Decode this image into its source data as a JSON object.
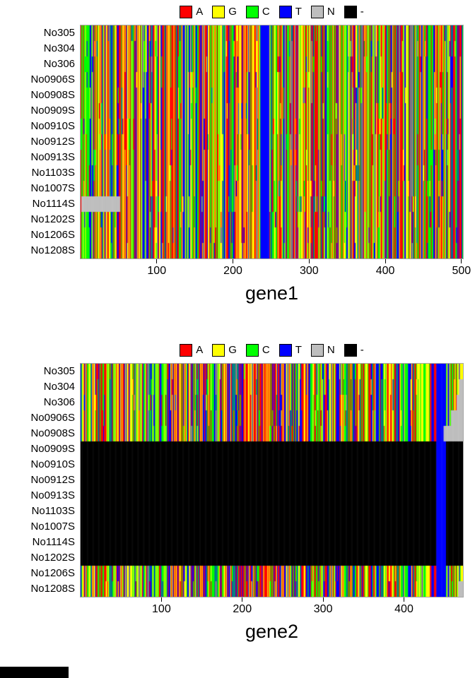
{
  "figure": {
    "background": "#ffffff",
    "bottom_left_black_bar": true
  },
  "legend": {
    "items": [
      {
        "label": "A",
        "color": "#ff0000"
      },
      {
        "label": "G",
        "color": "#ffff00"
      },
      {
        "label": "C",
        "color": "#00ff00"
      },
      {
        "label": "T",
        "color": "#0000ff"
      },
      {
        "label": "N",
        "color": "#bebebe"
      },
      {
        "label": "-",
        "color": "#000000"
      }
    ]
  },
  "base_colors": {
    "A": "#ff0000",
    "G": "#ffff00",
    "C": "#00ff00",
    "T": "#0000ff",
    "N": "#bebebe",
    "-": "#000000"
  },
  "chart_data": [
    {
      "type": "heatmap",
      "title": "gene1",
      "description": "DNA sequence alignment image; each cell colored by nucleotide (A red, G yellow, C green, T blue, N grey, gap black)",
      "row_labels": [
        "No305",
        "No304",
        "No306",
        "No0906S",
        "No0908S",
        "No0909S",
        "No0910S",
        "No0912S",
        "No0913S",
        "No1103S",
        "No1007S",
        "No1114S",
        "No1202S",
        "No1206S",
        "No1208S"
      ],
      "n_rows": 15,
      "sequence_length": 502,
      "x_ticks": [
        100,
        200,
        300,
        400,
        500
      ],
      "legend_entries": [
        "A",
        "G",
        "C",
        "T",
        "N",
        "-"
      ],
      "features": [
        {
          "row": 11,
          "col_start": 1,
          "col_end": 51,
          "base": "N",
          "note": "No1114S leading ambiguous (N) block"
        },
        {
          "rows_all": true,
          "col_start": 236,
          "col_end": 247,
          "base": "T",
          "note": "conserved T band across all samples"
        }
      ],
      "seed": 1337
    },
    {
      "type": "heatmap",
      "title": "gene2",
      "description": "DNA sequence alignment image; rows No0909S-No1202S are entirely missing (gap/black)",
      "row_labels": [
        "No305",
        "No304",
        "No306",
        "No0906S",
        "No0908S",
        "No0909S",
        "No0910S",
        "No0912S",
        "No0913S",
        "No1103S",
        "No1007S",
        "No1114S",
        "No1202S",
        "No1206S",
        "No1208S"
      ],
      "n_rows": 15,
      "sequence_length": 473,
      "x_ticks": [
        100,
        200,
        300,
        400
      ],
      "legend_entries": [
        "A",
        "G",
        "C",
        "T",
        "N",
        "-"
      ],
      "features": [
        {
          "row_start": 5,
          "row_end": 12,
          "col_start": 0,
          "col_end": 472,
          "base": "-",
          "note": "missing sequences shown as gaps"
        },
        {
          "rows_all": true,
          "col_start": 440,
          "col_end": 451,
          "base": "T",
          "note": "conserved T band"
        },
        {
          "row": 1,
          "col_start": 468,
          "col_end": 472,
          "base": "N"
        },
        {
          "row": 2,
          "col_start": 465,
          "col_end": 472,
          "base": "N"
        },
        {
          "row": 3,
          "col_start": 458,
          "col_end": 472,
          "base": "N"
        },
        {
          "row": 4,
          "col_start": 449,
          "col_end": 472,
          "base": "N"
        },
        {
          "row": 14,
          "col_start": 467,
          "col_end": 472,
          "base": "N"
        }
      ],
      "seed": 2024
    }
  ]
}
